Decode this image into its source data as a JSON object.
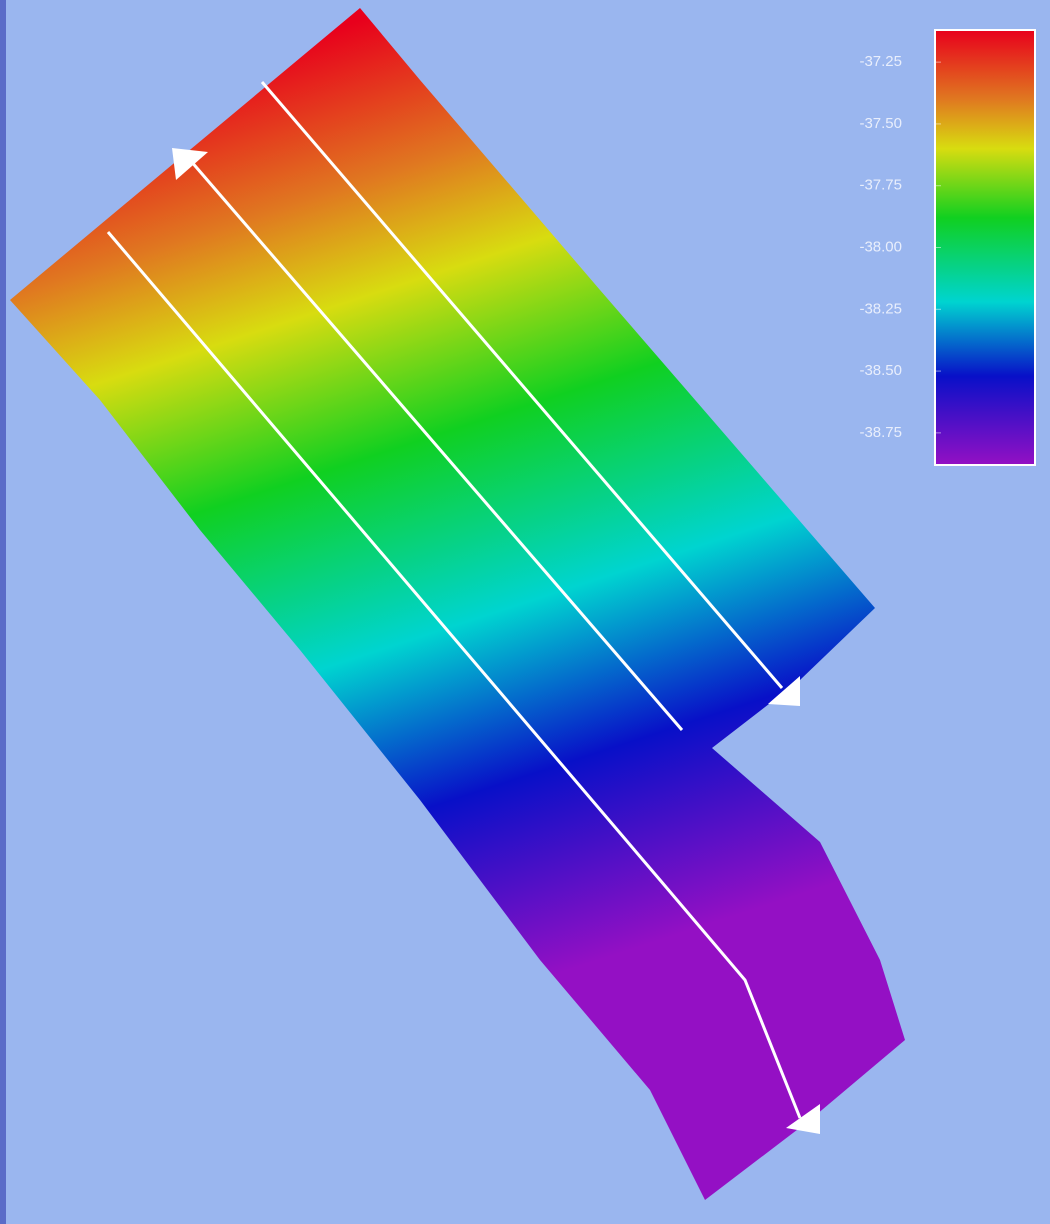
{
  "colorbar": {
    "range": [
      -38.88,
      -37.12
    ],
    "ticks": [
      {
        "value": -37.25,
        "label": "-37.25"
      },
      {
        "value": -37.5,
        "label": "-37.50"
      },
      {
        "value": -37.75,
        "label": "-37.75"
      },
      {
        "value": -38,
        "label": "-38.00"
      },
      {
        "value": -38.25,
        "label": "-38.25"
      },
      {
        "value": -38.5,
        "label": "-38.50"
      },
      {
        "value": -38.75,
        "label": "-38.75"
      }
    ],
    "stops": [
      {
        "value": -37.12,
        "color": "#e8001c"
      },
      {
        "value": -37.4,
        "color": "#e07820"
      },
      {
        "value": -37.6,
        "color": "#d8dc10"
      },
      {
        "value": -37.88,
        "color": "#10d020"
      },
      {
        "value": -38.22,
        "color": "#00d4d0"
      },
      {
        "value": -38.52,
        "color": "#0810c8"
      },
      {
        "value": -38.88,
        "color": "#9410c4"
      }
    ]
  }
}
